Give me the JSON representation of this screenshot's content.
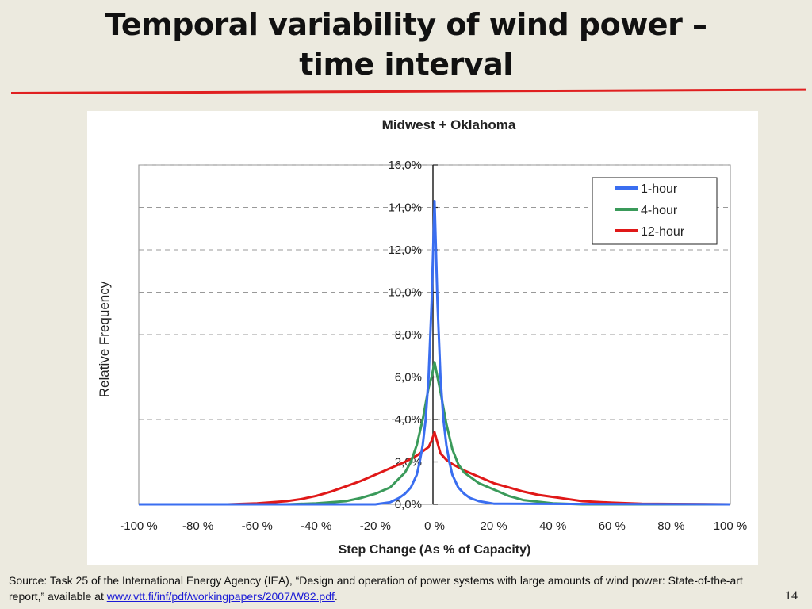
{
  "slide": {
    "title_line1": "Temporal variability of wind power –",
    "title_line2": "time interval",
    "source_prefix": "Source: Task 25 of the International Energy Agency (IEA), “Design and operation of power systems with large amounts of wind power: State-of-the-art report,” available at ",
    "source_link": "www.vtt.fi/inf/pdf/workingpapers/2007/W82.pdf",
    "source_suffix": ".",
    "page_number": "14",
    "accent_color": "#e02020"
  },
  "chart_data": {
    "type": "line",
    "title": "Midwest + Oklahoma",
    "xlabel": "Step Change (As % of Capacity)",
    "ylabel": "Relative Frequency",
    "xlim": [
      -100,
      100
    ],
    "ylim": [
      0,
      16
    ],
    "x_ticks": [
      "-100 %",
      "-80 %",
      "-60 %",
      "-40 %",
      "-20 %",
      "0 %",
      "20 %",
      "40 %",
      "60 %",
      "80 %",
      "100 %"
    ],
    "y_ticks": [
      "0,0%",
      "2,0%",
      "4,0%",
      "6,0%",
      "8,0%",
      "10,0%",
      "12,0%",
      "14,0%",
      "16,0%"
    ],
    "grid": "horizontal dashed",
    "legend_position": "top-right",
    "series": [
      {
        "name": "1-hour",
        "color": "#3a6ef0",
        "x": [
          -100,
          -20,
          -15,
          -12,
          -10,
          -8,
          -6,
          -5,
          -4,
          -3,
          -2,
          -1,
          0,
          1,
          2,
          3,
          4,
          5,
          6,
          8,
          10,
          12,
          15,
          20,
          100
        ],
        "y": [
          0,
          0,
          0.1,
          0.3,
          0.5,
          0.8,
          1.4,
          2.0,
          2.8,
          4.0,
          6.0,
          9.5,
          14.3,
          9.5,
          6.0,
          4.0,
          2.8,
          2.0,
          1.4,
          0.8,
          0.5,
          0.3,
          0.15,
          0.03,
          0
        ]
      },
      {
        "name": "4-hour",
        "color": "#3a9a5a",
        "x": [
          -100,
          -50,
          -40,
          -30,
          -25,
          -20,
          -15,
          -10,
          -8,
          -6,
          -4,
          -2,
          -1,
          0,
          1,
          2,
          4,
          6,
          8,
          10,
          15,
          20,
          25,
          30,
          40,
          50,
          100
        ],
        "y": [
          0,
          0,
          0.05,
          0.15,
          0.3,
          0.5,
          0.8,
          1.5,
          2.0,
          2.8,
          4.0,
          5.5,
          6.0,
          6.7,
          6.0,
          5.3,
          3.8,
          2.6,
          1.9,
          1.5,
          1.0,
          0.7,
          0.4,
          0.2,
          0.05,
          0,
          0
        ]
      },
      {
        "name": "12-hour",
        "color": "#e01818",
        "x": [
          -100,
          -70,
          -60,
          -50,
          -45,
          -40,
          -35,
          -30,
          -25,
          -20,
          -15,
          -10,
          -6,
          -4,
          -2,
          -1,
          0,
          1,
          2,
          4,
          6,
          10,
          15,
          20,
          25,
          30,
          35,
          40,
          45,
          50,
          60,
          70,
          100
        ],
        "y": [
          0,
          0,
          0.05,
          0.15,
          0.25,
          0.4,
          0.6,
          0.85,
          1.1,
          1.4,
          1.7,
          2.0,
          2.3,
          2.5,
          2.7,
          3.0,
          3.4,
          2.9,
          2.4,
          2.1,
          1.9,
          1.6,
          1.3,
          1.0,
          0.8,
          0.6,
          0.45,
          0.35,
          0.25,
          0.15,
          0.08,
          0.03,
          0
        ]
      }
    ]
  }
}
